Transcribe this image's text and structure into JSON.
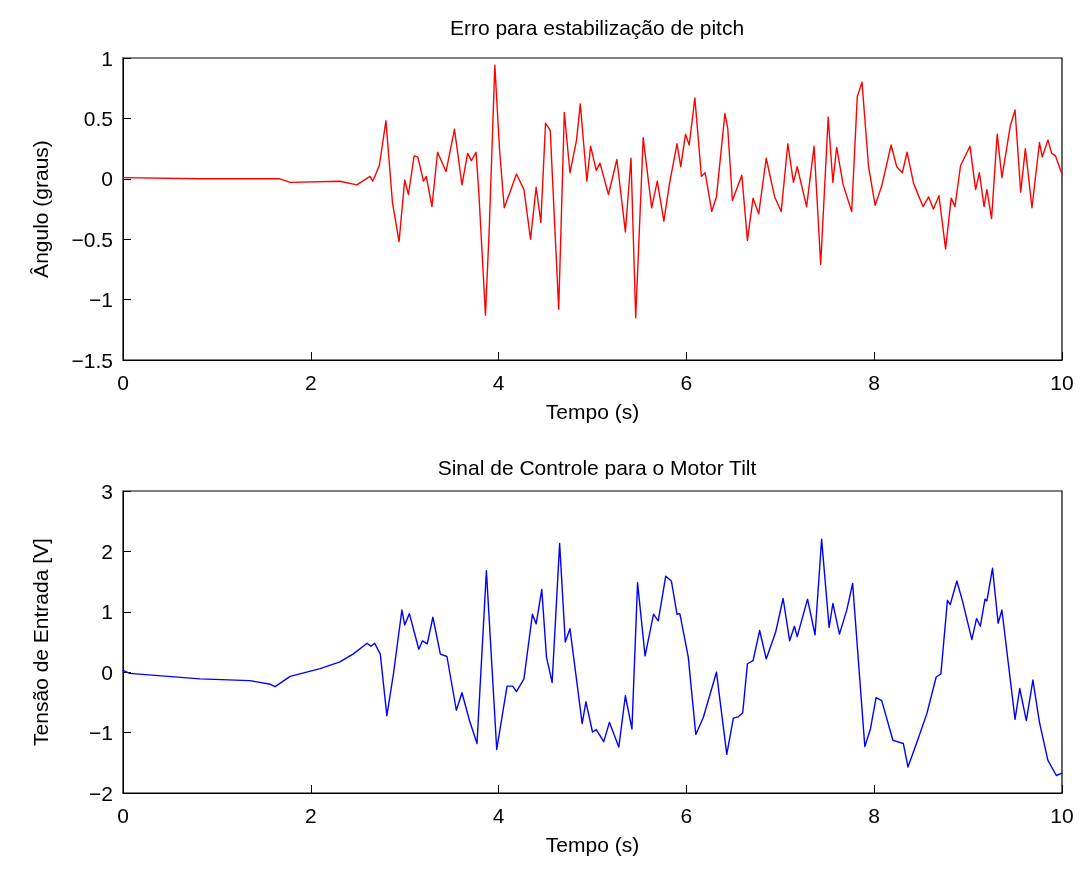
{
  "chart_data": [
    {
      "type": "line",
      "title": "Erro para estabilização de pitch",
      "xlabel": "Tempo (s)",
      "ylabel": "Ângulo (graus)",
      "xlim": [
        0,
        10
      ],
      "xticks": [
        0,
        2,
        4,
        6,
        8,
        10
      ],
      "ylim": [
        -1.5,
        1
      ],
      "yticks": [
        -1.5,
        -1,
        -0.5,
        0,
        0.5,
        1
      ],
      "grid": false,
      "x": [
        0,
        0.82,
        1.67,
        1.78,
        2.31,
        2.49,
        2.63,
        2.66,
        2.73,
        2.8,
        2.87,
        2.94,
        3.0,
        3.04,
        3.1,
        3.14,
        3.2,
        3.23,
        3.29,
        3.35,
        3.44,
        3.53,
        3.61,
        3.67,
        3.71,
        3.76,
        3.79,
        3.86,
        3.9,
        3.96,
        4.01,
        4.06,
        4.14,
        4.19,
        4.27,
        4.34,
        4.4,
        4.45,
        4.5,
        4.55,
        4.64,
        4.7,
        4.76,
        4.83,
        4.87,
        4.94,
        4.98,
        5.04,
        5.08,
        5.17,
        5.26,
        5.35,
        5.41,
        5.46,
        5.54,
        5.63,
        5.69,
        5.76,
        5.82,
        5.9,
        5.94,
        5.99,
        6.03,
        6.09,
        6.16,
        6.2,
        6.27,
        6.32,
        6.41,
        6.44,
        6.49,
        6.59,
        6.65,
        6.71,
        6.77,
        6.85,
        6.94,
        7.01,
        7.08,
        7.14,
        7.18,
        7.28,
        7.36,
        7.43,
        7.51,
        7.56,
        7.6,
        7.67,
        7.76,
        7.82,
        7.87,
        7.94,
        8.01,
        8.08,
        8.18,
        8.24,
        8.3,
        8.35,
        8.42,
        8.52,
        8.58,
        8.63,
        8.69,
        8.76,
        8.82,
        8.86,
        8.92,
        9.02,
        9.08,
        9.12,
        9.17,
        9.2,
        9.25,
        9.31,
        9.36,
        9.45,
        9.5,
        9.56,
        9.61,
        9.68,
        9.76,
        9.79,
        9.85,
        9.89,
        9.93,
        10.0
      ],
      "series": [
        {
          "color": "#ff0000",
          "values": [
            0.01,
            0.0,
            0.0,
            -0.03,
            -0.02,
            -0.05,
            0.02,
            -0.02,
            0.11,
            0.48,
            -0.2,
            -0.52,
            -0.01,
            -0.13,
            0.19,
            0.18,
            -0.02,
            0.02,
            -0.23,
            0.22,
            0.06,
            0.41,
            -0.05,
            0.21,
            0.15,
            0.22,
            -0.12,
            -1.13,
            -0.42,
            0.94,
            0.24,
            -0.24,
            -0.07,
            0.04,
            -0.09,
            -0.5,
            -0.07,
            -0.36,
            0.46,
            0.4,
            -1.08,
            0.55,
            0.05,
            0.32,
            0.62,
            -0.02,
            0.27,
            0.07,
            0.13,
            -0.13,
            0.16,
            -0.44,
            0.17,
            -1.15,
            0.34,
            -0.24,
            -0.02,
            -0.35,
            -0.04,
            0.29,
            0.1,
            0.37,
            0.28,
            0.67,
            0.02,
            0.05,
            -0.27,
            -0.15,
            0.54,
            0.42,
            -0.18,
            0.03,
            -0.51,
            -0.16,
            -0.29,
            0.17,
            -0.15,
            -0.27,
            0.29,
            -0.03,
            0.1,
            -0.23,
            0.27,
            -0.71,
            0.51,
            -0.03,
            0.26,
            -0.05,
            -0.27,
            0.68,
            0.8,
            0.1,
            -0.22,
            -0.06,
            0.28,
            0.1,
            0.05,
            0.22,
            -0.04,
            -0.23,
            -0.15,
            -0.25,
            -0.14,
            -0.58,
            -0.16,
            -0.23,
            0.11,
            0.27,
            -0.09,
            0.05,
            -0.23,
            -0.09,
            -0.33,
            0.37,
            0.01,
            0.44,
            0.57,
            -0.11,
            0.25,
            -0.24,
            0.3,
            0.18,
            0.32,
            0.21,
            0.19,
            0.04
          ]
        }
      ]
    },
    {
      "type": "line",
      "title": "Sinal de Controle para o Motor Tilt",
      "xlabel": "Tempo (s)",
      "ylabel": "Tensão de Entrada [V]",
      "xlim": [
        0,
        10
      ],
      "xticks": [
        0,
        2,
        4,
        6,
        8,
        10
      ],
      "ylim": [
        -2,
        3
      ],
      "yticks": [
        -2,
        -1,
        0,
        1,
        2,
        3
      ],
      "grid": false,
      "x": [
        0,
        0.07,
        0.82,
        1.35,
        1.57,
        1.62,
        1.78,
        2.1,
        2.31,
        2.45,
        2.6,
        2.64,
        2.68,
        2.74,
        2.81,
        2.88,
        2.97,
        3.0,
        3.05,
        3.15,
        3.19,
        3.24,
        3.3,
        3.38,
        3.45,
        3.55,
        3.61,
        3.69,
        3.77,
        3.87,
        3.98,
        4.09,
        4.15,
        4.19,
        4.27,
        4.36,
        4.4,
        4.46,
        4.51,
        4.57,
        4.65,
        4.71,
        4.76,
        4.89,
        4.93,
        5.0,
        5.04,
        5.12,
        5.18,
        5.28,
        5.35,
        5.42,
        5.48,
        5.56,
        5.65,
        5.7,
        5.78,
        5.84,
        5.9,
        5.93,
        6.02,
        6.1,
        6.18,
        6.32,
        6.43,
        6.5,
        6.55,
        6.6,
        6.65,
        6.71,
        6.78,
        6.85,
        6.95,
        7.03,
        7.1,
        7.15,
        7.18,
        7.29,
        7.37,
        7.44,
        7.52,
        7.56,
        7.63,
        7.71,
        7.77,
        7.9,
        7.96,
        8.02,
        8.08,
        8.2,
        8.31,
        8.36,
        8.45,
        8.56,
        8.66,
        8.71,
        8.78,
        8.81,
        8.88,
        8.94,
        9.04,
        9.09,
        9.13,
        9.18,
        9.2,
        9.26,
        9.32,
        9.36,
        9.5,
        9.55,
        9.62,
        9.69,
        9.76,
        9.85,
        9.94,
        10.0
      ],
      "series": [
        {
          "color": "#0000ff",
          "values": [
            0.03,
            -0.02,
            -0.11,
            -0.14,
            -0.2,
            -0.24,
            -0.07,
            0.06,
            0.17,
            0.3,
            0.48,
            0.43,
            0.48,
            0.3,
            -0.72,
            -0.03,
            1.03,
            0.78,
            0.97,
            0.38,
            0.52,
            0.47,
            0.91,
            0.3,
            0.26,
            -0.63,
            -0.34,
            -0.8,
            -1.18,
            1.68,
            -1.28,
            -0.23,
            -0.23,
            -0.32,
            -0.11,
            0.96,
            0.8,
            1.37,
            0.25,
            -0.17,
            2.13,
            0.5,
            0.72,
            -0.85,
            -0.49,
            -0.99,
            -0.95,
            -1.15,
            -0.83,
            -1.24,
            -0.39,
            -0.94,
            1.48,
            0.27,
            0.96,
            0.85,
            1.59,
            1.51,
            0.96,
            0.97,
            0.25,
            -1.03,
            -0.75,
            0.0,
            -1.36,
            -0.76,
            -0.74,
            -0.67,
            0.14,
            0.19,
            0.69,
            0.22,
            0.66,
            1.22,
            0.52,
            0.76,
            0.59,
            1.21,
            0.62,
            2.2,
            0.74,
            1.14,
            0.63,
            1.04,
            1.47,
            -1.23,
            -0.94,
            -0.42,
            -0.47,
            -1.13,
            -1.18,
            -1.57,
            -1.18,
            -0.69,
            -0.08,
            -0.03,
            1.19,
            1.12,
            1.51,
            1.18,
            0.54,
            0.89,
            0.76,
            1.21,
            1.18,
            1.72,
            0.81,
            1.03,
            -0.78,
            -0.27,
            -0.8,
            -0.13,
            -0.83,
            -1.46,
            -1.71,
            -1.67
          ]
        }
      ]
    }
  ]
}
